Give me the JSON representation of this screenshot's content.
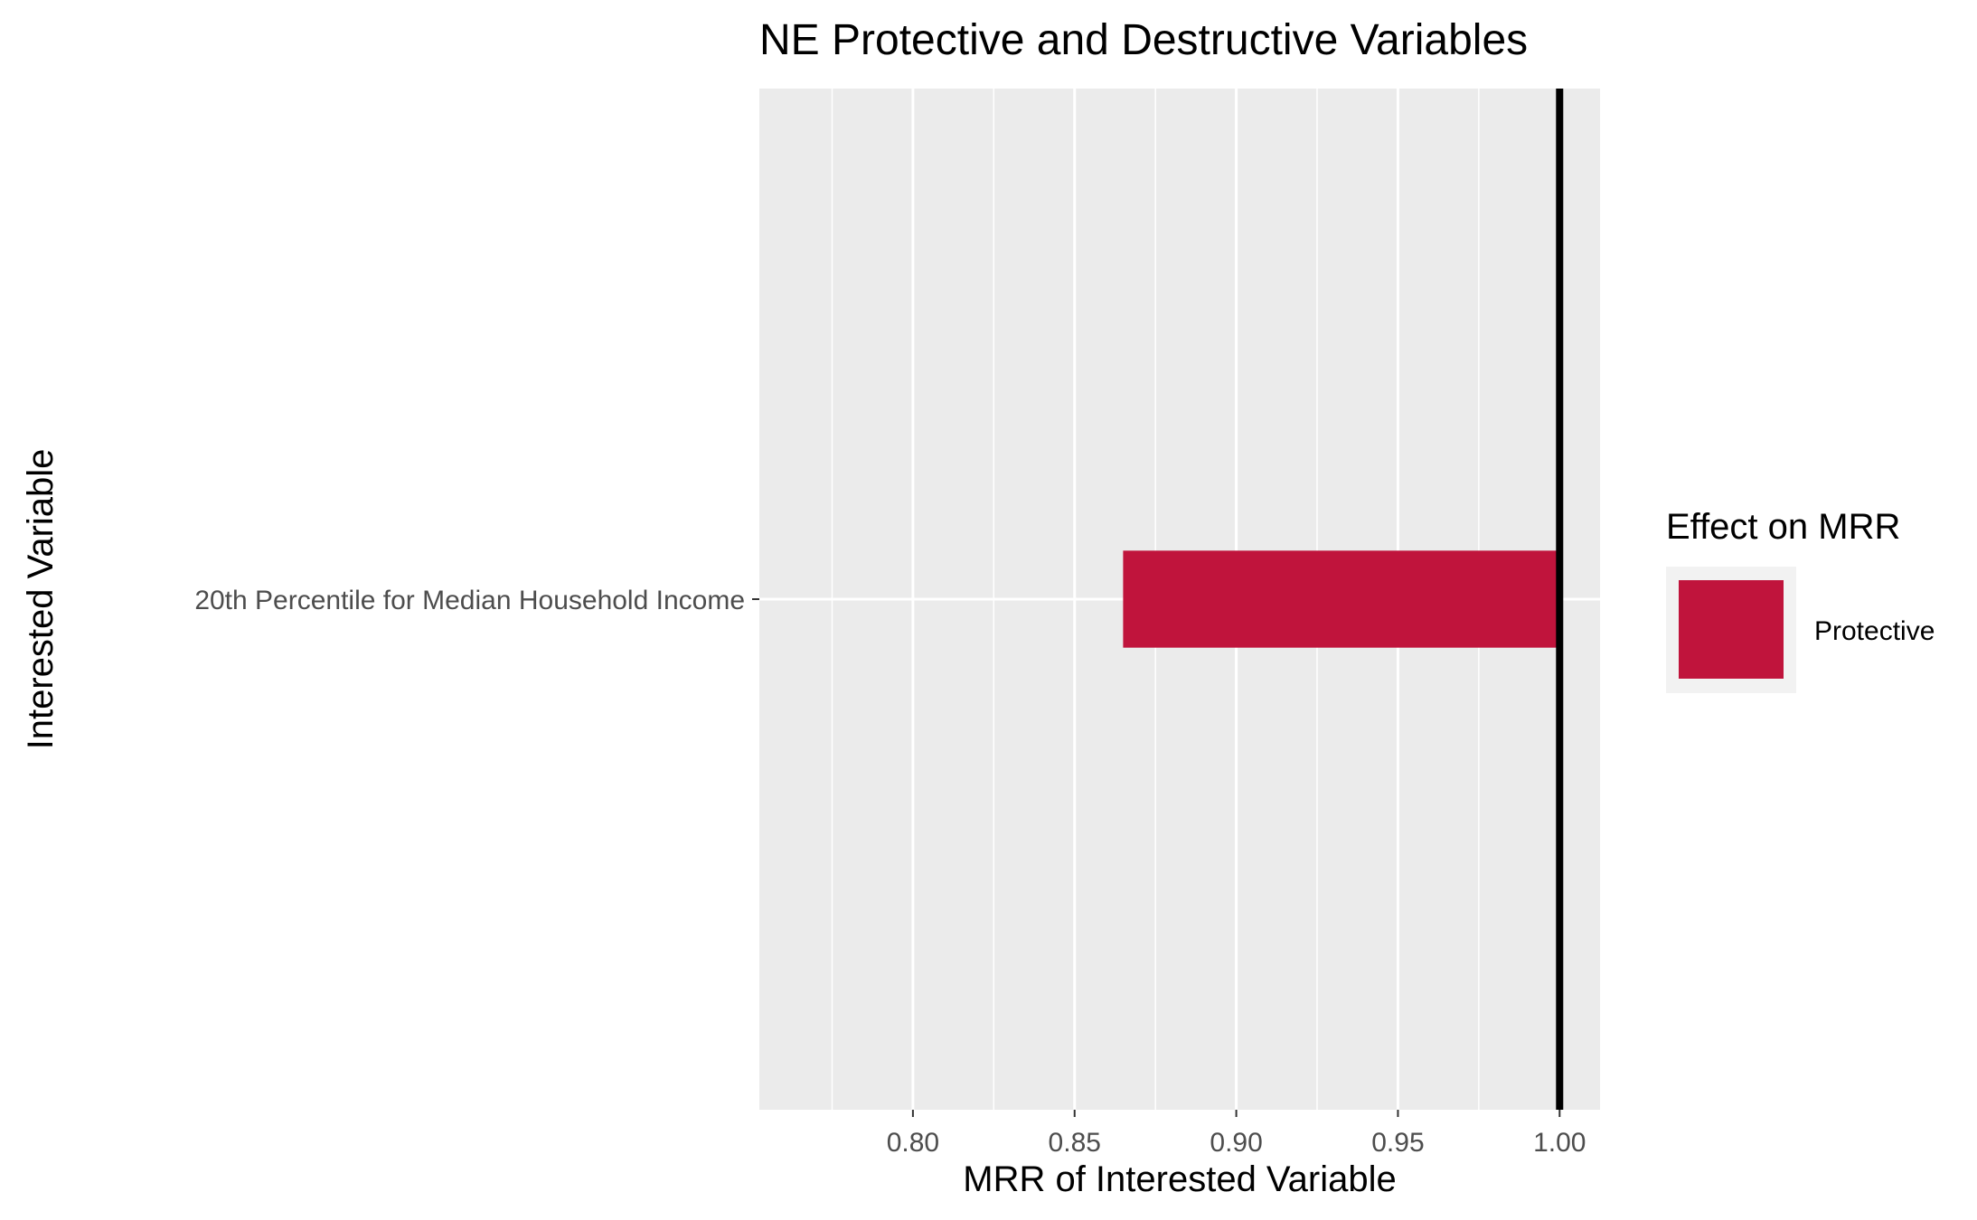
{
  "chart_data": {
    "type": "bar",
    "orientation": "horizontal",
    "title": "NE Protective and Destructive Variables",
    "xlabel": "MRR of Interested Variable",
    "ylabel": "Interested Variable",
    "categories": [
      "20th Percentile for Median Household Income"
    ],
    "series": [
      {
        "name": "Protective",
        "color": "#c0143c",
        "start": [
          0.865
        ],
        "end": [
          1.0
        ]
      }
    ],
    "xlim": [
      0.7525,
      1.0125
    ],
    "x_ticks": [
      0.8,
      0.85,
      0.9,
      0.95,
      1.0
    ],
    "x_tick_labels": [
      "0.80",
      "0.85",
      "0.90",
      "0.95",
      "1.00"
    ],
    "x_minor_ticks": [
      0.775,
      0.825,
      0.875,
      0.925,
      0.975
    ],
    "reference_line": {
      "x": 1.0,
      "color": "#000000"
    },
    "grid": true,
    "panel_background": "#ebebeb",
    "legend": {
      "title": "Effect on MRR",
      "position": "right",
      "entries": [
        {
          "label": "Protective",
          "color": "#c0143c"
        }
      ]
    }
  }
}
